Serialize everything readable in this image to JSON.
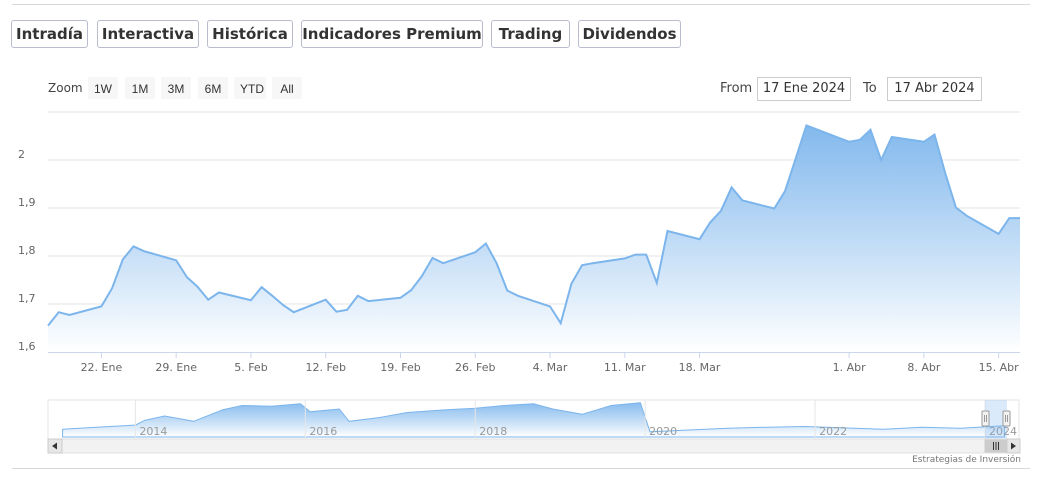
{
  "tabs": [
    {
      "label": "Intradía",
      "style": "purple"
    },
    {
      "label": "Interactiva",
      "style": "purple"
    },
    {
      "label": "Histórica",
      "style": "active"
    },
    {
      "label": "Indicadores Premium",
      "style": "salmon"
    },
    {
      "label": "Trading",
      "style": "salmon"
    },
    {
      "label": "Dividendos",
      "style": "purple"
    }
  ],
  "range_selector": {
    "zoom_label": "Zoom",
    "buttons": [
      "1W",
      "1M",
      "3M",
      "6M",
      "YTD",
      "All"
    ],
    "selected": "3M",
    "from_label": "From",
    "from_value": "17 Ene 2024",
    "to_label": "To",
    "to_value": "17 Abr 2024"
  },
  "credit": "Estrategias de Inversión",
  "colors": {
    "line": "#7cb5ec",
    "fill_top": "#7cb5ec",
    "fill_bottom": "#ffffff",
    "grid": "#e6e6e6"
  },
  "chart_data": {
    "type": "area",
    "title": "",
    "xlabel": "",
    "ylabel": "",
    "ylim": [
      1.6,
      2.1
    ],
    "yticks": [
      1.6,
      1.7,
      1.8,
      1.9,
      2.0
    ],
    "ytick_labels": [
      "1,6",
      "1,7",
      "1,8",
      "1,9",
      "2"
    ],
    "xlim": [
      "2024-01-17",
      "2024-04-17"
    ],
    "xticks": [
      {
        "date": "2024-01-22",
        "label": "22. Ene"
      },
      {
        "date": "2024-01-29",
        "label": "29. Ene"
      },
      {
        "date": "2024-02-05",
        "label": "5. Feb"
      },
      {
        "date": "2024-02-12",
        "label": "12. Feb"
      },
      {
        "date": "2024-02-19",
        "label": "19. Feb"
      },
      {
        "date": "2024-02-26",
        "label": "26. Feb"
      },
      {
        "date": "2024-03-04",
        "label": "4. Mar"
      },
      {
        "date": "2024-03-11",
        "label": "11. Mar"
      },
      {
        "date": "2024-03-18",
        "label": "18. Mar"
      },
      {
        "date": "2024-04-01",
        "label": "1. Abr"
      },
      {
        "date": "2024-04-08",
        "label": "8. Abr"
      },
      {
        "date": "2024-04-15",
        "label": "15. Abr"
      }
    ],
    "grid": true,
    "legend": "none",
    "series": [
      {
        "x": [
          "2024-01-17",
          "2024-01-18",
          "2024-01-19",
          "2024-01-22",
          "2024-01-23",
          "2024-01-24",
          "2024-01-25",
          "2024-01-26",
          "2024-01-29",
          "2024-01-30",
          "2024-01-31",
          "2024-02-01",
          "2024-02-02",
          "2024-02-05",
          "2024-02-06",
          "2024-02-07",
          "2024-02-08",
          "2024-02-09",
          "2024-02-12",
          "2024-02-13",
          "2024-02-14",
          "2024-02-15",
          "2024-02-16",
          "2024-02-19",
          "2024-02-20",
          "2024-02-21",
          "2024-02-22",
          "2024-02-23",
          "2024-02-26",
          "2024-02-27",
          "2024-02-28",
          "2024-02-29",
          "2024-03-01",
          "2024-03-04",
          "2024-03-05",
          "2024-03-06",
          "2024-03-07",
          "2024-03-08",
          "2024-03-11",
          "2024-03-12",
          "2024-03-13",
          "2024-03-14",
          "2024-03-15",
          "2024-03-18",
          "2024-03-19",
          "2024-03-20",
          "2024-03-21",
          "2024-03-22",
          "2024-03-25",
          "2024-03-26",
          "2024-03-27",
          "2024-03-28",
          "2024-04-01",
          "2024-04-02",
          "2024-04-03",
          "2024-04-04",
          "2024-04-05",
          "2024-04-08",
          "2024-04-09",
          "2024-04-10",
          "2024-04-11",
          "2024-04-12",
          "2024-04-15",
          "2024-04-16",
          "2024-04-17"
        ],
        "values": [
          1.655,
          1.683,
          1.677,
          1.695,
          1.733,
          1.793,
          1.82,
          1.81,
          1.791,
          1.756,
          1.736,
          1.709,
          1.724,
          1.708,
          1.735,
          1.717,
          1.698,
          1.683,
          1.709,
          1.684,
          1.688,
          1.717,
          1.706,
          1.713,
          1.729,
          1.758,
          1.796,
          1.785,
          1.808,
          1.826,
          1.785,
          1.728,
          1.717,
          1.695,
          1.66,
          1.742,
          1.781,
          1.785,
          1.795,
          1.803,
          1.803,
          1.744,
          1.852,
          1.835,
          1.87,
          1.894,
          1.943,
          1.916,
          1.899,
          1.935,
          2.003,
          2.072,
          2.038,
          2.042,
          2.063,
          2.0,
          2.048,
          2.038,
          2.053,
          1.973,
          1.901,
          1.884,
          1.846,
          1.879,
          1.879
        ]
      }
    ],
    "navigator": {
      "xticks": [
        "2014",
        "2016",
        "2018",
        "2020",
        "2022",
        "2024"
      ]
    }
  }
}
